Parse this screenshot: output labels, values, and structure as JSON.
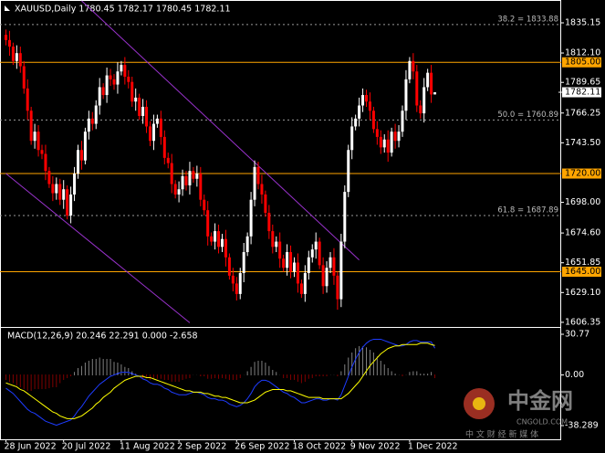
{
  "chart_data": [
    {
      "type": "candlestick",
      "title": "XAUUSD,Daily  1780.45 1782.17 1780.45 1782.11",
      "categories": [
        "28 Jun 2022",
        null,
        null,
        null,
        null,
        null,
        null,
        null,
        null,
        null,
        null,
        null,
        null,
        null,
        null,
        null,
        "20 Jul 2022",
        null,
        null,
        null,
        null,
        null,
        null,
        null,
        null,
        null,
        null,
        null,
        null,
        null,
        null,
        null,
        "11 Aug 2022",
        null,
        null,
        null,
        null,
        null,
        null,
        null,
        null,
        null,
        null,
        null,
        null,
        null,
        null,
        null,
        "2 Sep 2022",
        null,
        null,
        null,
        null,
        null,
        null,
        null,
        null,
        null,
        null,
        null,
        null,
        null,
        null,
        null,
        "26 Sep 2022",
        null,
        null,
        null,
        null,
        null,
        null,
        null,
        null,
        null,
        null,
        null,
        null,
        null,
        null,
        null,
        "18 Oct 2022",
        null,
        null,
        null,
        null,
        null,
        null,
        null,
        null,
        null,
        null,
        null,
        null,
        null,
        null,
        null,
        "9 Nov 2022",
        null,
        null,
        null,
        null,
        null,
        null,
        null,
        null,
        null,
        null,
        null,
        null,
        null,
        null,
        null,
        "1 Dec 2022",
        null,
        null,
        null,
        null,
        null,
        null,
        null
      ],
      "ohlc": [
        [
          1826,
          1830,
          1818,
          1822
        ],
        [
          1822,
          1829,
          1810,
          1817
        ],
        [
          1817,
          1820,
          1803,
          1806
        ],
        [
          1806,
          1818,
          1800,
          1812
        ],
        [
          1812,
          1817,
          1797,
          1802
        ],
        [
          1802,
          1806,
          1781,
          1785
        ],
        [
          1785,
          1792,
          1761,
          1768
        ],
        [
          1768,
          1771,
          1742,
          1745
        ],
        [
          1745,
          1758,
          1739,
          1752
        ],
        [
          1752,
          1757,
          1733,
          1738
        ],
        [
          1738,
          1742,
          1731,
          1735
        ],
        [
          1735,
          1742,
          1715,
          1722
        ],
        [
          1722,
          1725,
          1709,
          1712
        ],
        [
          1712,
          1718,
          1699,
          1705
        ],
        [
          1705,
          1717,
          1700,
          1712
        ],
        [
          1712,
          1716,
          1696,
          1700
        ],
        [
          1700,
          1715,
          1693,
          1708
        ],
        [
          1708,
          1711,
          1685,
          1688
        ],
        [
          1688,
          1710,
          1682,
          1704
        ],
        [
          1704,
          1725,
          1699,
          1720
        ],
        [
          1720,
          1742,
          1716,
          1738
        ],
        [
          1738,
          1745,
          1723,
          1730
        ],
        [
          1730,
          1755,
          1727,
          1752
        ],
        [
          1752,
          1768,
          1746,
          1762
        ],
        [
          1762,
          1767,
          1753,
          1758
        ],
        [
          1758,
          1776,
          1754,
          1772
        ],
        [
          1772,
          1793,
          1765,
          1786
        ],
        [
          1786,
          1789,
          1777,
          1780
        ],
        [
          1780,
          1801,
          1774,
          1795
        ],
        [
          1795,
          1800,
          1787,
          1792
        ],
        [
          1792,
          1796,
          1784,
          1788
        ],
        [
          1788,
          1805,
          1781,
          1798
        ],
        [
          1798,
          1806,
          1795,
          1803
        ],
        [
          1803,
          1809,
          1788,
          1794
        ],
        [
          1794,
          1799,
          1785,
          1790
        ],
        [
          1790,
          1794,
          1771,
          1775
        ],
        [
          1775,
          1785,
          1768,
          1778
        ],
        [
          1778,
          1781,
          1761,
          1764
        ],
        [
          1764,
          1777,
          1758,
          1771
        ],
        [
          1771,
          1776,
          1751,
          1756
        ],
        [
          1756,
          1760,
          1741,
          1745
        ],
        [
          1745,
          1765,
          1738,
          1758
        ],
        [
          1758,
          1765,
          1755,
          1762
        ],
        [
          1762,
          1768,
          1742,
          1748
        ],
        [
          1748,
          1753,
          1727,
          1732
        ],
        [
          1732,
          1736,
          1724,
          1728
        ],
        [
          1728,
          1735,
          1705,
          1712
        ],
        [
          1712,
          1715,
          1701,
          1704
        ],
        [
          1704,
          1714,
          1698,
          1708
        ],
        [
          1708,
          1723,
          1703,
          1718
        ],
        [
          1718,
          1722,
          1707,
          1711
        ],
        [
          1711,
          1729,
          1704,
          1722
        ],
        [
          1722,
          1725,
          1713,
          1716
        ],
        [
          1716,
          1726,
          1710,
          1720
        ],
        [
          1720,
          1725,
          1695,
          1700
        ],
        [
          1700,
          1704,
          1688,
          1692
        ],
        [
          1692,
          1699,
          1665,
          1672
        ],
        [
          1672,
          1675,
          1665,
          1668
        ],
        [
          1668,
          1682,
          1662,
          1676
        ],
        [
          1676,
          1681,
          1659,
          1664
        ],
        [
          1664,
          1674,
          1660,
          1670
        ],
        [
          1670,
          1677,
          1649,
          1656
        ],
        [
          1656,
          1659,
          1639,
          1642
        ],
        [
          1642,
          1648,
          1630,
          1636
        ],
        [
          1636,
          1641,
          1623,
          1628
        ],
        [
          1628,
          1648,
          1624,
          1644
        ],
        [
          1644,
          1667,
          1637,
          1660
        ],
        [
          1660,
          1675,
          1657,
          1672
        ],
        [
          1672,
          1706,
          1666,
          1700
        ],
        [
          1700,
          1730,
          1695,
          1725
        ],
        [
          1725,
          1729,
          1708,
          1712
        ],
        [
          1712,
          1719,
          1697,
          1704
        ],
        [
          1704,
          1707,
          1687,
          1690
        ],
        [
          1690,
          1696,
          1670,
          1676
        ],
        [
          1676,
          1681,
          1659,
          1664
        ],
        [
          1664,
          1672,
          1660,
          1668
        ],
        [
          1668,
          1675,
          1648,
          1655
        ],
        [
          1655,
          1658,
          1645,
          1648
        ],
        [
          1648,
          1666,
          1642,
          1660
        ],
        [
          1660,
          1665,
          1640,
          1645
        ],
        [
          1645,
          1656,
          1641,
          1652
        ],
        [
          1652,
          1659,
          1629,
          1636
        ],
        [
          1636,
          1639,
          1625,
          1628
        ],
        [
          1628,
          1650,
          1622,
          1644
        ],
        [
          1644,
          1661,
          1639,
          1656
        ],
        [
          1656,
          1666,
          1652,
          1662
        ],
        [
          1662,
          1675,
          1655,
          1668
        ],
        [
          1668,
          1671,
          1647,
          1650
        ],
        [
          1650,
          1656,
          1628,
          1634
        ],
        [
          1634,
          1653,
          1629,
          1648
        ],
        [
          1648,
          1660,
          1644,
          1656
        ],
        [
          1656,
          1663,
          1635,
          1642
        ],
        [
          1642,
          1645,
          1616,
          1624
        ],
        [
          1624,
          1674,
          1618,
          1668
        ],
        [
          1668,
          1711,
          1663,
          1706
        ],
        [
          1706,
          1742,
          1702,
          1738
        ],
        [
          1738,
          1763,
          1731,
          1756
        ],
        [
          1756,
          1765,
          1753,
          1762
        ],
        [
          1762,
          1778,
          1756,
          1772
        ],
        [
          1772,
          1785,
          1767,
          1780
        ],
        [
          1780,
          1784,
          1771,
          1775
        ],
        [
          1775,
          1782,
          1761,
          1768
        ],
        [
          1768,
          1771,
          1751,
          1754
        ],
        [
          1754,
          1760,
          1742,
          1748
        ],
        [
          1748,
          1753,
          1735,
          1740
        ],
        [
          1740,
          1750,
          1736,
          1746
        ],
        [
          1746,
          1753,
          1729,
          1736
        ],
        [
          1736,
          1755,
          1733,
          1752
        ],
        [
          1752,
          1758,
          1739,
          1745
        ],
        [
          1745,
          1757,
          1740,
          1752
        ],
        [
          1752,
          1772,
          1748,
          1768
        ],
        [
          1768,
          1799,
          1761,
          1792
        ],
        [
          1792,
          1809,
          1789,
          1806
        ],
        [
          1806,
          1812,
          1792,
          1798
        ],
        [
          1798,
          1803,
          1767,
          1772
        ],
        [
          1772,
          1776,
          1762,
          1766
        ],
        [
          1766,
          1793,
          1759,
          1786
        ],
        [
          1786,
          1800,
          1783,
          1797
        ],
        [
          1797,
          1803,
          1774,
          1780.45
        ],
        [
          1780.45,
          1782.17,
          1780.45,
          1782.11
        ]
      ],
      "up_color": "#ffffff",
      "down_color": "#ff0000",
      "ylim": [
        1604.2,
        1851.2
      ],
      "yticks": [
        1835.15,
        {
          "value": 1812.1,
          "label": "1812.10"
        },
        1789.65,
        1766.25,
        {
          "value": 1743.5,
          "label": "1743.50"
        },
        {
          "value": 1698,
          "label": "1698.00"
        },
        {
          "value": 1674.6,
          "label": "1674.60"
        },
        1651.85,
        {
          "value": 1629.1,
          "label": "1629.10"
        },
        1606.35
      ],
      "levels": [
        {
          "value": 1805,
          "label": "1805.00"
        },
        {
          "value": 1720,
          "label": "1720.00"
        },
        {
          "value": 1645,
          "label": "1645.00"
        }
      ],
      "level_color": "#ffa500",
      "fib_levels": [
        {
          "value": 1833.88,
          "label": "38.2 = 1833.88"
        },
        {
          "value": 1760.89,
          "label": "50.0 = 1760.89"
        },
        {
          "value": 1687.89,
          "label": "61.8 = 1687.89"
        }
      ],
      "trendlines": [
        {
          "points": [
            [
              21,
              1852
            ],
            [
              98,
              1654
            ]
          ]
        },
        {
          "points": [
            [
              0,
              1720
            ],
            [
              51,
              1606
            ]
          ]
        }
      ],
      "trendline_color": "#9932cc"
    },
    {
      "type": "macd",
      "title": "MACD(12,26,9) 20.246 22.291 0.000 -2.658",
      "ylim": [
        -38.289,
        30.77
      ],
      "yticks": [
        30.77,
        {
          "value": 0,
          "label": "0.00"
        },
        -38.289
      ],
      "histogram": [
        -4,
        -5,
        -6,
        -8,
        -9,
        -11,
        -12,
        -12,
        -11,
        -11,
        -11,
        -11,
        -10,
        -9,
        -9,
        -6,
        -4,
        -2,
        -1,
        2,
        5,
        7,
        9,
        11,
        12,
        12,
        13,
        12,
        12,
        12,
        10,
        9,
        8,
        6,
        5,
        3,
        1,
        0,
        -2,
        -2,
        -4,
        -4,
        -3,
        -3,
        -4,
        -4,
        -5,
        -5,
        -5,
        -4,
        -3,
        -2,
        0,
        0,
        -1,
        -1,
        -3,
        -3,
        -2,
        -3,
        -2,
        -3,
        -4,
        -4,
        -4,
        -2,
        0,
        3,
        6,
        10,
        11,
        11,
        9,
        7,
        4,
        2,
        0,
        -2,
        -2,
        -4,
        -4,
        -5,
        -6,
        -5,
        -3,
        -2,
        -1,
        -1,
        -1,
        -1,
        0,
        0,
        -1,
        3,
        8,
        13,
        17,
        20,
        22,
        22,
        21,
        19,
        17,
        14,
        11,
        8,
        5,
        3,
        1,
        0,
        -1,
        0,
        2,
        3,
        3,
        1,
        1,
        1,
        2,
        -2.658
      ],
      "up_color": "#ffffff",
      "down_color": "#ff0000",
      "series": [
        {
          "color": "#1e3cff",
          "values": [
            -10,
            -12,
            -14,
            -17,
            -20,
            -23,
            -26,
            -28,
            -29,
            -31,
            -33,
            -35,
            -36,
            -37,
            -38,
            -37,
            -36,
            -35,
            -34,
            -31,
            -27,
            -24,
            -20,
            -16,
            -13,
            -10,
            -7,
            -5,
            -3,
            -1,
            0,
            1,
            2,
            2,
            2,
            1,
            0,
            -1,
            -3,
            -4,
            -6,
            -7,
            -7,
            -8,
            -10,
            -11,
            -13,
            -14,
            -15,
            -15,
            -15,
            -14,
            -13,
            -13,
            -14,
            -15,
            -17,
            -18,
            -18,
            -19,
            -19,
            -20,
            -22,
            -23,
            -24,
            -23,
            -21,
            -18,
            -14,
            -9,
            -6,
            -4,
            -4,
            -5,
            -7,
            -9,
            -11,
            -13,
            -14,
            -16,
            -17,
            -19,
            -21,
            -21,
            -20,
            -19,
            -18,
            -18,
            -19,
            -19,
            -18,
            -18,
            -19,
            -15,
            -8,
            -1,
            6,
            12,
            17,
            21,
            24,
            26,
            27,
            27,
            27,
            26,
            25,
            24,
            23,
            22,
            22,
            23,
            25,
            26,
            26,
            25,
            25,
            25,
            25,
            20.246
          ]
        },
        {
          "color": "#ffff00",
          "values": [
            -6,
            -7,
            -8,
            -9,
            -11,
            -12,
            -14,
            -16,
            -18,
            -20,
            -22,
            -24,
            -26,
            -28,
            -29,
            -31,
            -32,
            -33,
            -33,
            -33,
            -32,
            -31,
            -29,
            -27,
            -25,
            -22,
            -20,
            -17,
            -15,
            -13,
            -10,
            -8,
            -6,
            -4,
            -3,
            -2,
            -1,
            -1,
            -1,
            -2,
            -2,
            -3,
            -4,
            -5,
            -6,
            -7,
            -8,
            -9,
            -10,
            -11,
            -12,
            -12,
            -13,
            -13,
            -13,
            -14,
            -14,
            -15,
            -16,
            -16,
            -17,
            -17,
            -18,
            -19,
            -20,
            -21,
            -21,
            -21,
            -20,
            -19,
            -17,
            -15,
            -13,
            -12,
            -11,
            -11,
            -11,
            -11,
            -12,
            -12,
            -13,
            -14,
            -15,
            -16,
            -17,
            -17,
            -17,
            -17,
            -18,
            -18,
            -18,
            -18,
            -18,
            -18,
            -16,
            -14,
            -11,
            -8,
            -5,
            -1,
            3,
            7,
            10,
            13,
            16,
            18,
            20,
            21,
            22,
            22,
            23,
            23,
            23,
            23,
            23,
            24,
            24,
            24,
            23,
            22.291
          ]
        }
      ]
    }
  ],
  "watermark": {
    "brand": "中金网",
    "domain": "CNGOLD.COM",
    "slogan": "中 文 财 经 新 媒 体"
  }
}
